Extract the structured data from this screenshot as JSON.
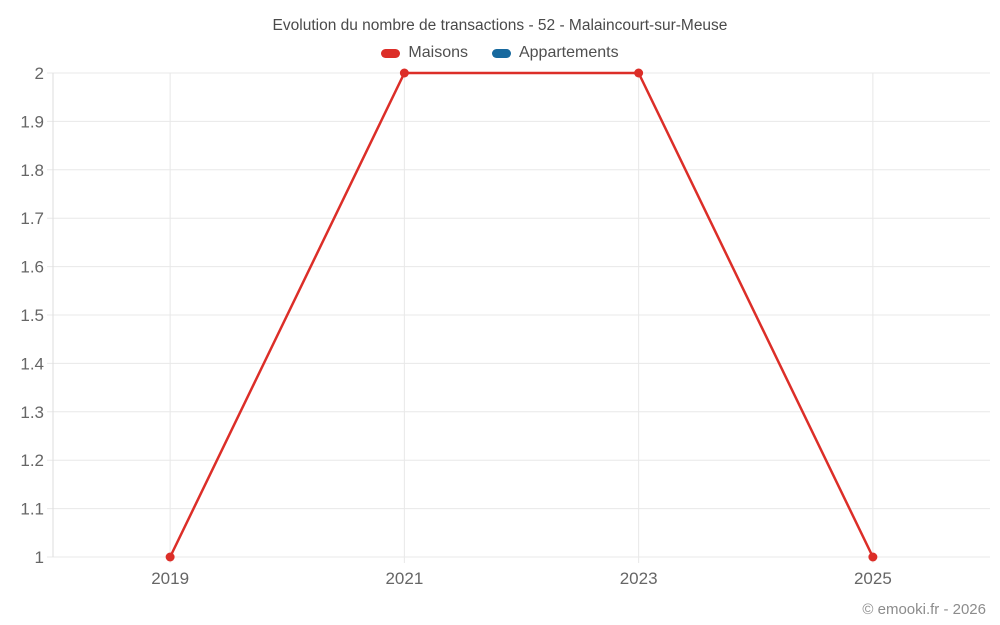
{
  "title": "Evolution du nombre de transactions - 52 - Malaincourt-sur-Meuse",
  "watermark": "© emooki.fr - 2026",
  "legend": [
    {
      "label": "Maisons",
      "color": "#dc2e28"
    },
    {
      "label": "Appartements",
      "color": "#17699e"
    }
  ],
  "colors": {
    "maisons": "#dc2e28",
    "appartements": "#17699e",
    "gridline": "#e8e8e8",
    "axis_line": "#dedede",
    "tick_text": "#666666",
    "title_text": "#4a4a4a",
    "watermark_text": "#8c8c8c"
  },
  "chart_data": {
    "type": "line",
    "title": "Evolution du nombre de transactions - 52 - Malaincourt-sur-Meuse",
    "x": [
      2019,
      2021,
      2023,
      2025
    ],
    "x_tick_labels": [
      "2019",
      "2021",
      "2023",
      "2025"
    ],
    "series": [
      {
        "name": "Maisons",
        "color": "#dc2e28",
        "values": [
          1,
          2,
          2,
          1
        ]
      },
      {
        "name": "Appartements",
        "color": "#17699e",
        "values": []
      }
    ],
    "xlabel": "",
    "ylabel": "",
    "xlim": [
      2018,
      2026
    ],
    "ylim": [
      1,
      2
    ],
    "y_ticks": [
      1,
      1.1,
      1.2,
      1.3,
      1.4,
      1.5,
      1.6,
      1.7,
      1.8,
      1.9,
      2
    ],
    "grid": true,
    "legend_position": "top",
    "marker": "circle"
  }
}
